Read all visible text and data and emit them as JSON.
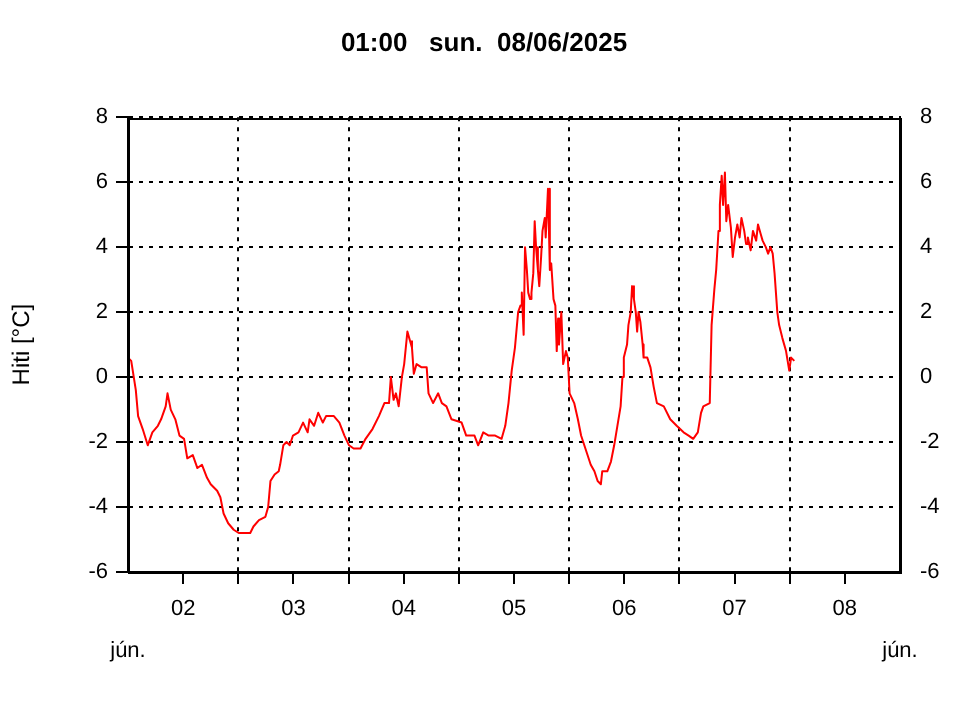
{
  "chart_data": {
    "type": "line",
    "title": "01:00   sun.  08/06/2025",
    "ylabel": "Hiti [°C]",
    "xlim": [
      "2025-06-02T00:00",
      "2025-06-09T00:00"
    ],
    "xticks": [
      {
        "value": "2025-06-02T12:00",
        "label": "02"
      },
      {
        "value": "2025-06-03T00:00",
        "label": null
      },
      {
        "value": "2025-06-03T12:00",
        "label": "03"
      },
      {
        "value": "2025-06-04T00:00",
        "label": null
      },
      {
        "value": "2025-06-04T12:00",
        "label": "04"
      },
      {
        "value": "2025-06-05T00:00",
        "label": null
      },
      {
        "value": "2025-06-05T12:00",
        "label": "05"
      },
      {
        "value": "2025-06-06T00:00",
        "label": null
      },
      {
        "value": "2025-06-06T12:00",
        "label": "06"
      },
      {
        "value": "2025-06-07T00:00",
        "label": null
      },
      {
        "value": "2025-06-07T12:00",
        "label": "07"
      },
      {
        "value": "2025-06-08T00:00",
        "label": null
      },
      {
        "value": "2025-06-08T12:00",
        "label": "08"
      }
    ],
    "annotations": [
      "jún.",
      "jún."
    ],
    "ylim": [
      -6,
      8
    ],
    "yticks": [
      -6,
      -4,
      -2,
      0,
      2,
      4,
      6,
      8
    ],
    "y2lim": [
      -6,
      8
    ],
    "y2ticks": [
      -6,
      -4,
      -2,
      0,
      2,
      4,
      6,
      8
    ],
    "grid": true,
    "legend": false,
    "series": [
      {
        "color": "#ff0000",
        "x": [
          "2025-06-02T00:00",
          "2025-06-02T00:42",
          "2025-06-02T01:42",
          "2025-06-02T02:12",
          "2025-06-02T03:12",
          "2025-06-02T04:18",
          "2025-06-02T05:18",
          "2025-06-02T06:30",
          "2025-06-02T07:12",
          "2025-06-02T08:12",
          "2025-06-02T08:36",
          "2025-06-02T09:18",
          "2025-06-02T10:18",
          "2025-06-02T11:12",
          "2025-06-02T12:12",
          "2025-06-02T12:54",
          "2025-06-02T14:06",
          "2025-06-02T15:06",
          "2025-06-02T16:06",
          "2025-06-02T17:12",
          "2025-06-02T18:00",
          "2025-06-02T19:24",
          "2025-06-02T20:06",
          "2025-06-02T20:48",
          "2025-06-02T21:48",
          "2025-06-02T23:00",
          "2025-06-03T00:06",
          "2025-06-03T01:06",
          "2025-06-03T02:36",
          "2025-06-03T03:18",
          "2025-06-03T04:30",
          "2025-06-03T05:54",
          "2025-06-03T06:30",
          "2025-06-03T07:00",
          "2025-06-03T07:54",
          "2025-06-03T08:48",
          "2025-06-03T09:06",
          "2025-06-03T09:48",
          "2025-06-03T10:30",
          "2025-06-03T11:12",
          "2025-06-03T11:54",
          "2025-06-03T13:06",
          "2025-06-03T14:06",
          "2025-06-03T15:06",
          "2025-06-03T15:30",
          "2025-06-03T16:30",
          "2025-06-03T17:24",
          "2025-06-03T18:24",
          "2025-06-03T19:06",
          "2025-06-03T20:48",
          "2025-06-03T22:00",
          "2025-06-03T23:06",
          "2025-06-04T00:06",
          "2025-06-04T01:06",
          "2025-06-04T02:36",
          "2025-06-04T03:42",
          "2025-06-04T05:12",
          "2025-06-04T06:36",
          "2025-06-04T07:48",
          "2025-06-04T08:48",
          "2025-06-04T09:12",
          "2025-06-04T09:48",
          "2025-06-04T10:18",
          "2025-06-04T10:54",
          "2025-06-04T11:36",
          "2025-06-04T12:06",
          "2025-06-04T12:48",
          "2025-06-04T13:24",
          "2025-06-04T13:48",
          "2025-06-04T14:12",
          "2025-06-04T14:48",
          "2025-06-04T15:54",
          "2025-06-04T17:00",
          "2025-06-04T17:24",
          "2025-06-04T18:24",
          "2025-06-04T19:30",
          "2025-06-04T20:18",
          "2025-06-04T21:18",
          "2025-06-04T22:24",
          "2025-06-05T00:36",
          "2025-06-05T01:36",
          "2025-06-05T03:24",
          "2025-06-05T04:12",
          "2025-06-05T05:18",
          "2025-06-05T06:30",
          "2025-06-05T07:54",
          "2025-06-05T09:18",
          "2025-06-05T10:06",
          "2025-06-05T10:48",
          "2025-06-05T11:30",
          "2025-06-05T12:12",
          "2025-06-05T12:54",
          "2025-06-05T13:24",
          "2025-06-05T13:42",
          "2025-06-05T14:06",
          "2025-06-05T14:24",
          "2025-06-05T14:48",
          "2025-06-05T15:06",
          "2025-06-05T15:30",
          "2025-06-05T15:48",
          "2025-06-05T16:12",
          "2025-06-05T16:30",
          "2025-06-05T16:48",
          "2025-06-05T17:12",
          "2025-06-05T17:30",
          "2025-06-05T17:54",
          "2025-06-05T18:12",
          "2025-06-05T18:42",
          "2025-06-05T18:54",
          "2025-06-05T19:24",
          "2025-06-05T19:48",
          "2025-06-05T20:06",
          "2025-06-05T20:36",
          "2025-06-05T21:00",
          "2025-06-05T21:18",
          "2025-06-05T21:36",
          "2025-06-05T21:48",
          "2025-06-05T22:18",
          "2025-06-05T22:42",
          "2025-06-05T23:18",
          "2025-06-05T23:42",
          "2025-06-06T00:06",
          "2025-06-06T01:06",
          "2025-06-06T01:54",
          "2025-06-06T02:36",
          "2025-06-06T03:18",
          "2025-06-06T04:00",
          "2025-06-06T04:42",
          "2025-06-06T05:30",
          "2025-06-06T06:12",
          "2025-06-06T06:54",
          "2025-06-06T07:12",
          "2025-06-06T08:18",
          "2025-06-06T09:06",
          "2025-06-06T09:48",
          "2025-06-06T10:30",
          "2025-06-06T11:12",
          "2025-06-06T11:36",
          "2025-06-06T11:54",
          "2025-06-06T12:36",
          "2025-06-06T12:54",
          "2025-06-06T13:24",
          "2025-06-06T13:42",
          "2025-06-06T14:06",
          "2025-06-06T14:30",
          "2025-06-06T14:48",
          "2025-06-06T15:06",
          "2025-06-06T15:30",
          "2025-06-06T16:00",
          "2025-06-06T16:12",
          "2025-06-06T17:00",
          "2025-06-06T17:42",
          "2025-06-06T18:24",
          "2025-06-06T19:06",
          "2025-06-06T20:36",
          "2025-06-06T22:00",
          "2025-06-06T23:24",
          "2025-06-07T00:54",
          "2025-06-07T02:00",
          "2025-06-07T03:00",
          "2025-06-07T04:00",
          "2025-06-07T04:42",
          "2025-06-07T05:12",
          "2025-06-07T06:36",
          "2025-06-07T07:00",
          "2025-06-07T07:36",
          "2025-06-07T08:00",
          "2025-06-07T08:30",
          "2025-06-07T08:48",
          "2025-06-07T09:12",
          "2025-06-07T09:30",
          "2025-06-07T09:54",
          "2025-06-07T10:12",
          "2025-06-07T10:36",
          "2025-06-07T11:12",
          "2025-06-07T11:36",
          "2025-06-07T12:06",
          "2025-06-07T12:36",
          "2025-06-07T13:06",
          "2025-06-07T13:30",
          "2025-06-07T14:06",
          "2025-06-07T14:30",
          "2025-06-07T14:54",
          "2025-06-07T15:30",
          "2025-06-07T16:00",
          "2025-06-07T16:42",
          "2025-06-07T17:06",
          "2025-06-07T17:42",
          "2025-06-07T18:06",
          "2025-06-07T18:48",
          "2025-06-07T19:18",
          "2025-06-07T19:48",
          "2025-06-07T20:18",
          "2025-06-07T20:42",
          "2025-06-07T21:18",
          "2025-06-07T21:42",
          "2025-06-07T22:24",
          "2025-06-07T23:12",
          "2025-06-07T23:54",
          "2025-06-08T00:18",
          "2025-06-08T01:00"
        ],
        "values": [
          0.6,
          0.5,
          -0.4,
          -1.2,
          -1.6,
          -2.1,
          -1.7,
          -1.5,
          -1.3,
          -0.9,
          -0.5,
          -1.0,
          -1.3,
          -1.8,
          -1.9,
          -2.5,
          -2.4,
          -2.8,
          -2.7,
          -3.1,
          -3.3,
          -3.5,
          -3.7,
          -4.2,
          -4.5,
          -4.7,
          -4.8,
          -4.8,
          -4.8,
          -4.6,
          -4.4,
          -4.3,
          -4.0,
          -3.2,
          -3.0,
          -2.9,
          -2.7,
          -2.1,
          -2.0,
          -2.1,
          -1.8,
          -1.7,
          -1.4,
          -1.7,
          -1.3,
          -1.5,
          -1.1,
          -1.4,
          -1.2,
          -1.2,
          -1.4,
          -1.8,
          -2.1,
          -2.2,
          -2.2,
          -1.9,
          -1.6,
          -1.2,
          -0.8,
          -0.8,
          0.0,
          -0.7,
          -0.5,
          -0.9,
          0.0,
          0.4,
          1.4,
          1.1,
          0.9,
          0.1,
          0.4,
          0.3,
          0.3,
          -0.5,
          -0.8,
          -0.5,
          -0.8,
          -0.9,
          -1.3,
          -1.4,
          -1.8,
          -1.8,
          -2.1,
          -1.7,
          -1.8,
          -1.8,
          -1.9,
          -1.5,
          -0.8,
          0.2,
          0.9,
          2.0,
          2.2,
          2.6,
          1.3,
          4.0,
          3.3,
          2.6,
          2.4,
          2.6,
          3.2,
          4.8,
          4.0,
          3.3,
          2.8,
          3.7,
          4.5,
          4.9,
          4.3,
          5.8,
          3.3,
          3.5,
          2.4,
          2.2,
          0.8,
          1.8,
          1.0,
          2.0,
          0.4,
          0.8,
          0.6,
          -0.5,
          -0.8,
          -1.3,
          -1.8,
          -2.1,
          -2.4,
          -2.7,
          -2.9,
          -3.2,
          -3.3,
          -2.9,
          -2.9,
          -2.6,
          -2.1,
          -1.5,
          -0.9,
          0.0,
          0.6,
          1.0,
          1.6,
          2.0,
          2.8,
          2.4,
          2.0,
          1.4,
          2.0,
          1.7,
          1.0,
          0.6,
          0.6,
          0.3,
          -0.3,
          -0.8,
          -0.9,
          -1.3,
          -1.5,
          -1.7,
          -1.8,
          -1.9,
          -1.7,
          -1.1,
          -0.9,
          -0.8,
          1.6,
          2.7,
          3.3,
          4.5,
          5.3,
          6.2,
          5.3,
          6.3,
          4.8,
          5.3,
          4.6,
          3.7,
          4.3,
          4.7,
          4.3,
          4.9,
          4.5,
          4.1,
          4.3,
          3.9,
          4.5,
          4.2,
          4.7,
          4.4,
          4.2,
          4.0,
          3.8,
          4.0,
          3.8,
          3.2,
          2.0,
          1.6,
          1.2,
          0.8,
          0.2,
          0.6,
          0.5
        ]
      }
    ]
  }
}
